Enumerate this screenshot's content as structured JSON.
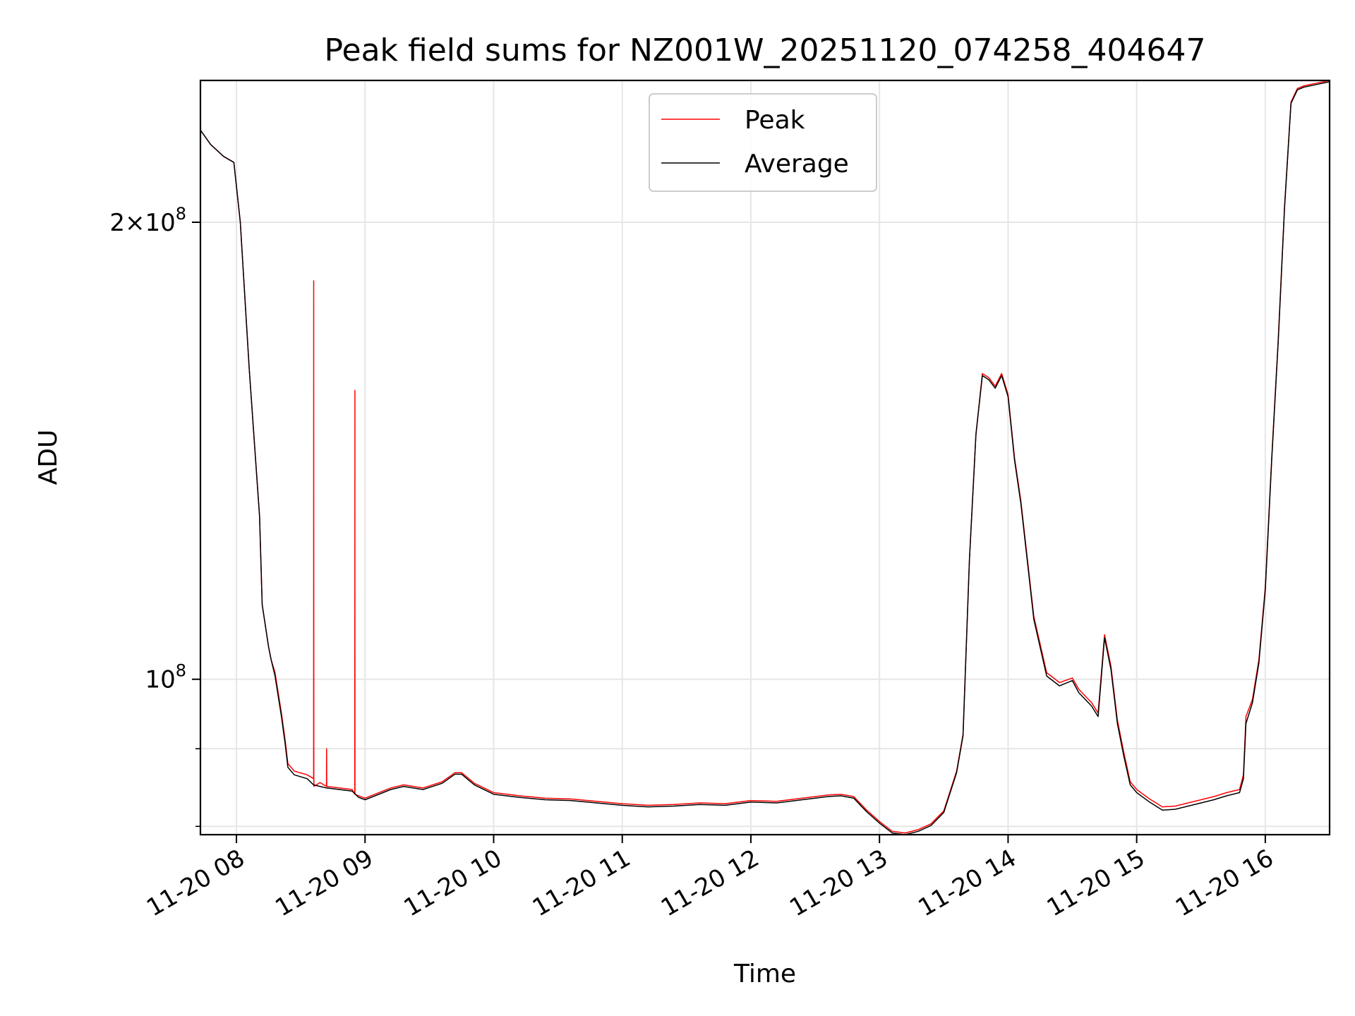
{
  "chart_data": {
    "type": "line",
    "title": "Peak field sums for NZ001W_20251120_074258_404647",
    "xlabel": "Time",
    "ylabel": "ADU",
    "yscale": "log",
    "xlim": [
      7.72,
      16.5
    ],
    "ylim": [
      79000000,
      248000000
    ],
    "grid": true,
    "legend_position": "top-center",
    "x_ticks": [
      {
        "value": 8,
        "label": "11-20 08"
      },
      {
        "value": 9,
        "label": "11-20 09"
      },
      {
        "value": 10,
        "label": "11-20 10"
      },
      {
        "value": 11,
        "label": "11-20 11"
      },
      {
        "value": 12,
        "label": "11-20 12"
      },
      {
        "value": 13,
        "label": "11-20 13"
      },
      {
        "value": 14,
        "label": "11-20 14"
      },
      {
        "value": 15,
        "label": "11-20 15"
      },
      {
        "value": 16,
        "label": "11-20 16"
      }
    ],
    "y_ticks_major": [
      {
        "value": 100000000,
        "base": "10",
        "exp": "8"
      },
      {
        "value": 200000000,
        "mantissa": "2",
        "base": "10",
        "exp": "8"
      }
    ],
    "y_ticks_minor": [
      80000000,
      90000000
    ],
    "series": [
      {
        "name": "Peak",
        "color": "#ff0000",
        "x": [
          7.72,
          7.8,
          7.9,
          7.98,
          8.03,
          8.1,
          8.18,
          8.2,
          8.25,
          8.27,
          8.3,
          8.35,
          8.38,
          8.4,
          8.45,
          8.55,
          8.6,
          8.601,
          8.602,
          8.603,
          8.65,
          8.7,
          8.701,
          8.702,
          8.8,
          8.9,
          8.92,
          8.921,
          8.922,
          8.95,
          9.0,
          9.2,
          9.3,
          9.45,
          9.6,
          9.7,
          9.75,
          9.85,
          10.0,
          10.2,
          10.4,
          10.6,
          10.8,
          11.0,
          11.2,
          11.4,
          11.6,
          11.8,
          12.0,
          12.2,
          12.4,
          12.6,
          12.7,
          12.8,
          12.9,
          13.0,
          13.1,
          13.2,
          13.3,
          13.4,
          13.5,
          13.6,
          13.65,
          13.7,
          13.75,
          13.8,
          13.85,
          13.9,
          13.95,
          14.0,
          14.05,
          14.1,
          14.15,
          14.2,
          14.3,
          14.4,
          14.5,
          14.55,
          14.65,
          14.7,
          14.75,
          14.8,
          14.85,
          14.9,
          14.95,
          15.0,
          15.1,
          15.2,
          15.3,
          15.4,
          15.5,
          15.6,
          15.7,
          15.8,
          15.83,
          15.85,
          15.9,
          15.95,
          16.0,
          16.05,
          16.1,
          16.15,
          16.2,
          16.25,
          16.3,
          16.4,
          16.5
        ],
        "values": [
          230000000,
          225000000,
          221000000,
          219000000,
          200000000,
          160000000,
          128000000,
          112000000,
          105000000,
          103000000,
          101000000,
          95000000,
          91000000,
          88000000,
          87000000,
          86500000,
          86000000,
          183000000,
          86000000,
          85000000,
          85500000,
          85000000,
          90000000,
          85000000,
          84800000,
          84600000,
          84000000,
          155000000,
          84000000,
          83800000,
          83500000,
          84800000,
          85200000,
          84800000,
          85600000,
          86800000,
          86800000,
          85400000,
          84200000,
          83800000,
          83500000,
          83400000,
          83100000,
          82800000,
          82600000,
          82700000,
          82900000,
          82800000,
          83200000,
          83100000,
          83500000,
          83900000,
          84000000,
          83700000,
          82000000,
          80600000,
          79400000,
          79200000,
          79600000,
          80300000,
          81900000,
          87000000,
          92000000,
          120000000,
          145000000,
          159000000,
          158000000,
          156000000,
          159000000,
          154000000,
          140000000,
          131000000,
          120000000,
          110000000,
          101000000,
          99500000,
          100200000,
          98500000,
          96500000,
          95000000,
          107000000,
          102000000,
          94000000,
          89500000,
          85600000,
          84600000,
          83400000,
          82400000,
          82500000,
          82900000,
          83300000,
          83700000,
          84200000,
          84600000,
          86500000,
          94500000,
          97000000,
          103000000,
          115000000,
          140000000,
          167000000,
          205000000,
          240000000,
          245000000,
          246000000,
          247000000,
          248000000
        ]
      },
      {
        "name": "Average",
        "color": "#000000",
        "x": [
          7.72,
          7.8,
          7.9,
          7.98,
          8.03,
          8.1,
          8.18,
          8.2,
          8.25,
          8.27,
          8.3,
          8.35,
          8.38,
          8.4,
          8.45,
          8.55,
          8.6,
          8.65,
          8.7,
          8.8,
          8.9,
          8.95,
          9.0,
          9.2,
          9.3,
          9.45,
          9.6,
          9.7,
          9.75,
          9.85,
          10.0,
          10.2,
          10.4,
          10.6,
          10.8,
          11.0,
          11.2,
          11.4,
          11.6,
          11.8,
          12.0,
          12.2,
          12.4,
          12.6,
          12.7,
          12.8,
          12.9,
          13.0,
          13.1,
          13.2,
          13.3,
          13.4,
          13.5,
          13.6,
          13.65,
          13.7,
          13.75,
          13.8,
          13.85,
          13.9,
          13.95,
          14.0,
          14.05,
          14.1,
          14.15,
          14.2,
          14.3,
          14.4,
          14.5,
          14.55,
          14.65,
          14.7,
          14.75,
          14.8,
          14.85,
          14.9,
          14.95,
          15.0,
          15.1,
          15.2,
          15.3,
          15.4,
          15.5,
          15.6,
          15.7,
          15.8,
          15.83,
          15.85,
          15.9,
          15.95,
          16.0,
          16.05,
          16.1,
          16.15,
          16.2,
          16.25,
          16.3,
          16.4,
          16.5
        ],
        "values": [
          230000000,
          225000000,
          221000000,
          219000000,
          200000000,
          160000000,
          128000000,
          112000000,
          105000000,
          103000000,
          100500000,
          94500000,
          90500000,
          87500000,
          86500000,
          86000000,
          85200000,
          85000000,
          84800000,
          84600000,
          84400000,
          83600000,
          83300000,
          84600000,
          85000000,
          84600000,
          85400000,
          86600000,
          86600000,
          85200000,
          84000000,
          83600000,
          83300000,
          83200000,
          82900000,
          82600000,
          82400000,
          82500000,
          82700000,
          82600000,
          83000000,
          82900000,
          83300000,
          83700000,
          83800000,
          83500000,
          81800000,
          80400000,
          79200000,
          79000000,
          79400000,
          80100000,
          81700000,
          86800000,
          91800000,
          120000000,
          145000000,
          158500000,
          157500000,
          155500000,
          158500000,
          153500000,
          139500000,
          130500000,
          119500000,
          109500000,
          100500000,
          99000000,
          99800000,
          98000000,
          96000000,
          94500000,
          106500000,
          101500000,
          93500000,
          89000000,
          85200000,
          84200000,
          83000000,
          82000000,
          82100000,
          82500000,
          82900000,
          83300000,
          83800000,
          84200000,
          86000000,
          93500000,
          96500000,
          102500000,
          114500000,
          139500000,
          166500000,
          204500000,
          239500000,
          244500000,
          245500000,
          246500000,
          247500000
        ]
      }
    ]
  }
}
